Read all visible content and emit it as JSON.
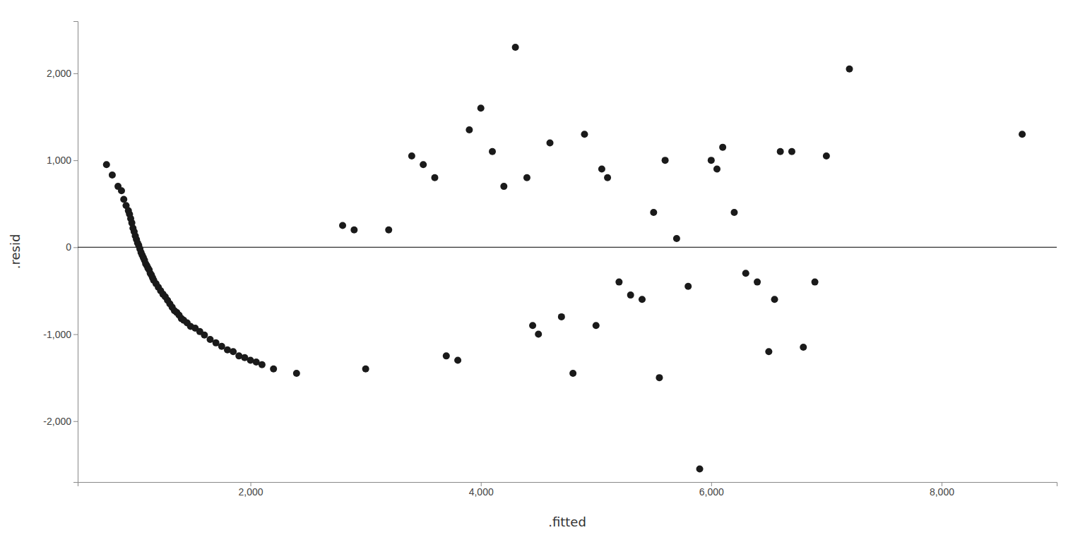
{
  "chart_data": {
    "type": "scatter",
    "xlabel": ".fitted",
    "ylabel": ".resid",
    "xlim": [
      500,
      9000
    ],
    "ylim": [
      -2700,
      2600
    ],
    "xticks": [
      {
        "value": 2000,
        "label": "2,000"
      },
      {
        "value": 4000,
        "label": "4,000"
      },
      {
        "value": 6000,
        "label": "6,000"
      },
      {
        "value": 8000,
        "label": "8,000"
      }
    ],
    "yticks": [
      {
        "value": -2000,
        "label": "-2,000"
      },
      {
        "value": -1000,
        "label": "-1,000"
      },
      0,
      {
        "value": 1000,
        "label": "1,000"
      },
      {
        "value": 2000,
        "label": "2,000"
      }
    ],
    "grid": false,
    "color": "#1a1a1a",
    "hline": 0,
    "x": [
      750,
      800,
      850,
      880,
      900,
      920,
      940,
      950,
      960,
      970,
      980,
      990,
      1000,
      1010,
      1020,
      1030,
      1040,
      1050,
      1060,
      1070,
      1080,
      1090,
      1100,
      1110,
      1120,
      1130,
      1140,
      1150,
      1160,
      1180,
      1200,
      1220,
      1240,
      1260,
      1280,
      1300,
      1320,
      1340,
      1360,
      1380,
      1400,
      1420,
      1450,
      1480,
      1520,
      1560,
      1600,
      1650,
      1700,
      1750,
      1800,
      1850,
      1900,
      1950,
      2000,
      2050,
      2100,
      2200,
      2400,
      2800,
      2900,
      3000,
      3200,
      3400,
      3500,
      3600,
      3700,
      3800,
      3900,
      4000,
      4100,
      4200,
      4300,
      4400,
      4450,
      4500,
      4600,
      4700,
      4800,
      4900,
      5000,
      5050,
      5100,
      5200,
      5300,
      5400,
      5500,
      5550,
      5600,
      5700,
      5800,
      5900,
      6000,
      6050,
      6100,
      6200,
      6300,
      6400,
      6500,
      6550,
      6600,
      6700,
      6800,
      6900,
      7000,
      7200,
      8700
    ],
    "values": [
      950,
      830,
      700,
      650,
      550,
      480,
      420,
      380,
      330,
      280,
      220,
      180,
      130,
      90,
      50,
      20,
      -20,
      -60,
      -90,
      -120,
      -150,
      -190,
      -210,
      -240,
      -260,
      -300,
      -320,
      -350,
      -380,
      -420,
      -460,
      -500,
      -540,
      -570,
      -610,
      -650,
      -690,
      -730,
      -750,
      -780,
      -820,
      -840,
      -870,
      -910,
      -930,
      -970,
      -1010,
      -1060,
      -1100,
      -1140,
      -1180,
      -1200,
      -1250,
      -1270,
      -1300,
      -1320,
      -1350,
      -1400,
      -1450,
      250,
      200,
      -1400,
      200,
      1050,
      950,
      800,
      -1250,
      -1300,
      1350,
      1600,
      1100,
      700,
      2300,
      800,
      -900,
      -1000,
      1200,
      -800,
      -1450,
      1300,
      -900,
      900,
      800,
      -400,
      -550,
      -600,
      400,
      -1500,
      1000,
      100,
      -450,
      -2550,
      1000,
      900,
      1150,
      400,
      -300,
      -400,
      -1200,
      -600,
      1100,
      1100,
      -1150,
      -400,
      1050,
      2050,
      1300
    ]
  }
}
